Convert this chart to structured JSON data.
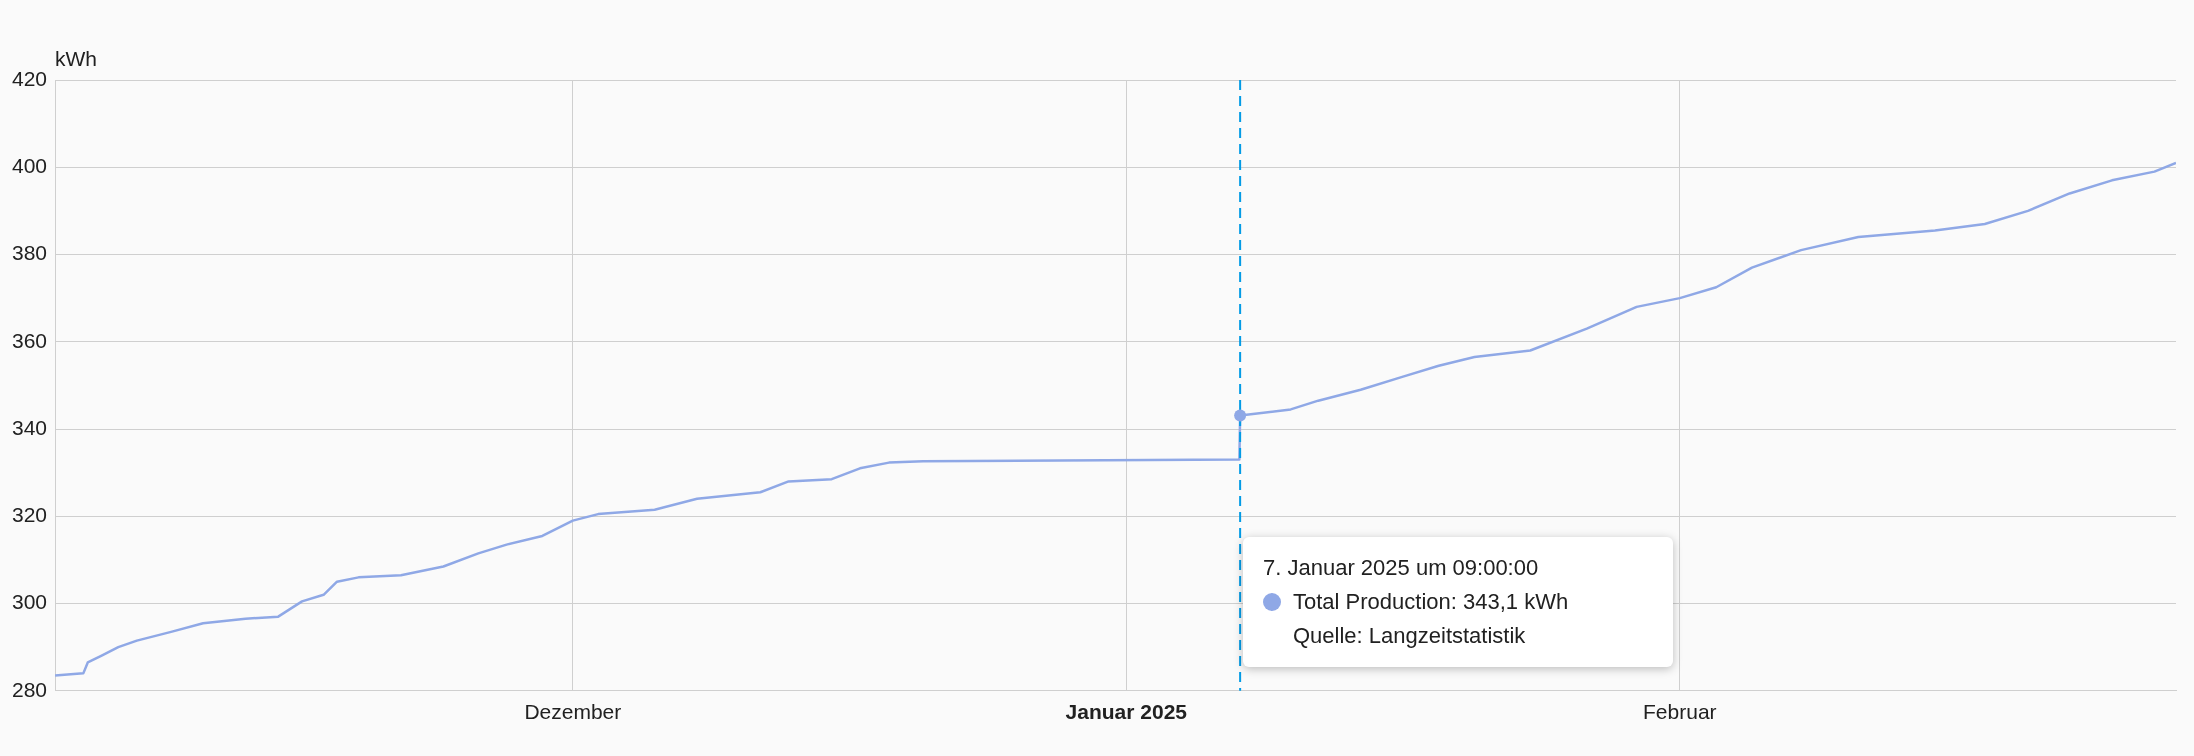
{
  "chart_data": {
    "type": "line",
    "ylabel": "kWh",
    "xlim": [
      "2024-11-02",
      "2025-02-28T19:00"
    ],
    "xticks": [
      {
        "value": "2024-12-01",
        "label": "Dezember"
      },
      {
        "value": "2025-01-01",
        "label": "Januar 2025"
      },
      {
        "value": "2025-02-01",
        "label": "Februar"
      }
    ],
    "ylim": [
      280,
      420
    ],
    "yticks": [
      280,
      300,
      320,
      340,
      360,
      380,
      400,
      420
    ],
    "grid": true,
    "marker": "none",
    "x": [
      "2024-11-02",
      "2024-11-03T14:00",
      "2024-11-03T20:00",
      "2024-11-04T14:00",
      "2024-11-05T13:00",
      "2024-11-06T14:00",
      "2024-11-08T12:00",
      "2024-11-10T07:00",
      "2024-11-12T16:00",
      "2024-11-14T12:00",
      "2024-11-15T20:00",
      "2024-11-17T01:00",
      "2024-11-17T19:00",
      "2024-11-19",
      "2024-11-21T09:00",
      "2024-11-23T18:00",
      "2024-11-25T17:00",
      "2024-11-27T07:00",
      "2024-11-29T07:00",
      "2024-12-01",
      "2024-12-02T10:00",
      "2024-12-05T14:00",
      "2024-12-07T23:00",
      "2024-12-11T12:00",
      "2024-12-13T02:00",
      "2024-12-15T12:00",
      "2024-12-17T02:00",
      "2024-12-18T17:00",
      "2024-12-20T15:00",
      "2025-01-07T08:00",
      "2025-01-07T09:00",
      "2025-01-10T05:00",
      "2025-01-11T18:00",
      "2025-01-14T03:00",
      "2025-01-16T12:00",
      "2025-01-18T12:00",
      "2025-01-20T12:00",
      "2025-01-23T15:00",
      "2025-01-26T19:00",
      "2025-01-29T14:00",
      "2025-02-01",
      "2025-02-03T01:00",
      "2025-02-05T01:00",
      "2025-02-07T19:00",
      "2025-02-11",
      "2025-02-15T07:00",
      "2025-02-18T02:00",
      "2025-02-20T12:00",
      "2025-02-22T20:00",
      "2025-02-25T05:00",
      "2025-02-27T14:00",
      "2025-02-28T19:00"
    ],
    "series": [
      {
        "color": "#8fa8e6",
        "values": [
          283.5,
          284,
          286.5,
          288,
          290,
          291.5,
          293.5,
          295.5,
          296.5,
          297,
          300.5,
          302,
          305,
          306,
          306.5,
          308.5,
          311.5,
          313.5,
          315.5,
          319,
          320.5,
          321.5,
          324,
          325.5,
          328,
          328.5,
          331,
          332.3,
          332.6,
          333,
          343.1,
          344.5,
          346.5,
          349,
          352,
          354.5,
          356.5,
          358,
          363,
          368,
          370,
          372.5,
          377,
          381,
          384,
          385.5,
          387,
          390,
          394,
          397,
          399,
          401
        ]
      }
    ],
    "ref_lines": [
      {
        "axis": "x",
        "value": "2025-01-07T09:00",
        "color": "#039be5",
        "line_style": "dashed"
      }
    ],
    "annotations": [
      "7. Januar 2025 um 09:00:00",
      "Total Production: 343,1 kWh",
      "Quelle: Langzeitstatistik"
    ]
  }
}
